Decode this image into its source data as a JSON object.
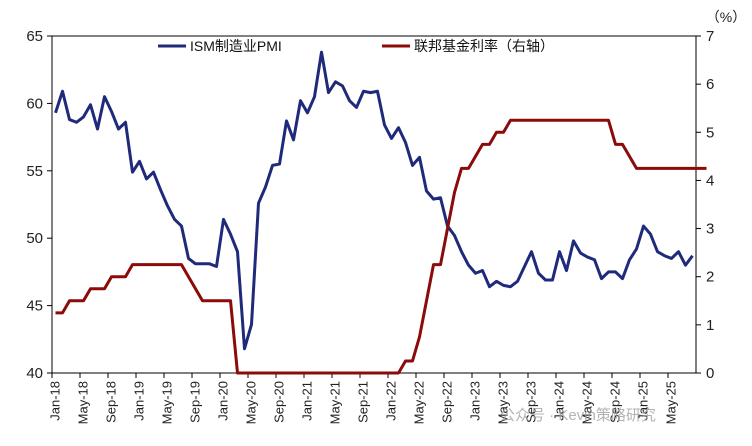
{
  "chart_data": {
    "type": "line",
    "y_left": {
      "min": 40,
      "max": 65,
      "ticks": [
        40,
        45,
        50,
        55,
        60,
        65
      ]
    },
    "y_right": {
      "min": 0,
      "max": 7,
      "ticks": [
        0,
        1,
        2,
        3,
        4,
        5,
        6,
        7
      ],
      "unit": "（%）"
    },
    "x_start": "Jan-18",
    "x_ticks": [
      "Jan-18",
      "May-18",
      "Sep-18",
      "Jan-19",
      "May-19",
      "Sep-19",
      "Jan-20",
      "May-20",
      "Sep-20",
      "Jan-21",
      "May-21",
      "Sep-21",
      "Jan-22",
      "May-22",
      "Sep-22",
      "Jan-23",
      "May-23",
      "Sep-23",
      "Jan-24",
      "May-24",
      "Sep-24",
      "Jan-25",
      "May-25"
    ],
    "legend_position": "top",
    "series": [
      {
        "name": "ISM制造业PMI",
        "axis": "left",
        "color": "#1f2a7a",
        "values": [
          59.3,
          60.9,
          58.8,
          58.6,
          59.0,
          59.9,
          58.1,
          60.5,
          59.4,
          58.1,
          58.6,
          54.9,
          55.7,
          54.4,
          54.9,
          53.6,
          52.4,
          51.4,
          50.9,
          48.5,
          48.1,
          48.1,
          48.1,
          47.9,
          51.4,
          50.3,
          49.0,
          41.8,
          43.6,
          52.6,
          53.8,
          55.4,
          55.5,
          58.7,
          57.3,
          60.2,
          59.3,
          60.5,
          63.8,
          60.8,
          61.6,
          61.3,
          60.2,
          59.7,
          60.9,
          60.8,
          60.9,
          58.4,
          57.4,
          58.2,
          57.1,
          55.4,
          56.0,
          53.5,
          52.9,
          53.0,
          50.9,
          50.2,
          49.0,
          48.0,
          47.4,
          47.6,
          46.4,
          46.8,
          46.5,
          46.4,
          46.8,
          47.9,
          49.0,
          47.4,
          46.9,
          46.9,
          49.0,
          47.6,
          49.8,
          48.9,
          48.6,
          48.4,
          47.0,
          47.5,
          47.5,
          47.0,
          48.4,
          49.2,
          50.9,
          50.3,
          49.0,
          48.7,
          48.5,
          49.0,
          48.0,
          48.7
        ]
      },
      {
        "name": "联邦基金利率（右轴）",
        "axis": "right",
        "color": "#8b0a0a",
        "values": [
          1.25,
          1.25,
          1.5,
          1.5,
          1.5,
          1.75,
          1.75,
          1.75,
          2.0,
          2.0,
          2.0,
          2.25,
          2.25,
          2.25,
          2.25,
          2.25,
          2.25,
          2.25,
          2.25,
          2.0,
          1.75,
          1.5,
          1.5,
          1.5,
          1.5,
          1.5,
          0.0,
          0.0,
          0.0,
          0.0,
          0.0,
          0.0,
          0.0,
          0.0,
          0.0,
          0.0,
          0.0,
          0.0,
          0.0,
          0.0,
          0.0,
          0.0,
          0.0,
          0.0,
          0.0,
          0.0,
          0.0,
          0.0,
          0.0,
          0.0,
          0.25,
          0.25,
          0.75,
          1.5,
          2.25,
          2.25,
          3.0,
          3.75,
          4.25,
          4.25,
          4.5,
          4.75,
          4.75,
          5.0,
          5.0,
          5.25,
          5.25,
          5.25,
          5.25,
          5.25,
          5.25,
          5.25,
          5.25,
          5.25,
          5.25,
          5.25,
          5.25,
          5.25,
          5.25,
          5.25,
          4.75,
          4.75,
          4.5,
          4.25,
          4.25,
          4.25,
          4.25,
          4.25,
          4.25,
          4.25,
          4.25,
          4.25,
          4.25,
          4.25
        ]
      }
    ]
  },
  "watermark": "公众号 · Kevin策略研究"
}
